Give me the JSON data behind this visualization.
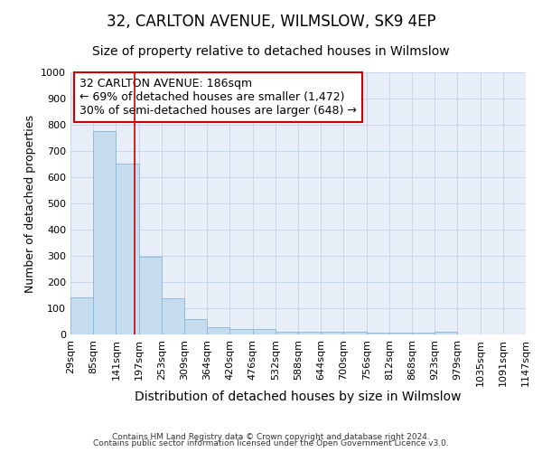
{
  "title": "32, CARLTON AVENUE, WILMSLOW, SK9 4EP",
  "subtitle": "Size of property relative to detached houses in Wilmslow",
  "xlabel": "Distribution of detached houses by size in Wilmslow",
  "ylabel": "Number of detached properties",
  "bin_labels": [
    "29sqm",
    "85sqm",
    "141sqm",
    "197sqm",
    "253sqm",
    "309sqm",
    "364sqm",
    "420sqm",
    "476sqm",
    "532sqm",
    "588sqm",
    "644sqm",
    "700sqm",
    "756sqm",
    "812sqm",
    "868sqm",
    "923sqm",
    "979sqm",
    "1035sqm",
    "1091sqm",
    "1147sqm"
  ],
  "bar_heights": [
    141,
    775,
    651,
    295,
    137,
    57,
    29,
    19,
    19,
    12,
    9,
    9,
    9,
    8,
    8,
    8,
    9,
    0,
    0,
    0
  ],
  "bar_color": "#c6ddef",
  "bar_edge_color": "#8ab4d4",
  "red_line_color": "#cc0000",
  "annotation_line1": "32 CARLTON AVENUE: 186sqm",
  "annotation_line2": "← 69% of detached houses are smaller (1,472)",
  "annotation_line3": "30% of semi-detached houses are larger (648) →",
  "annotation_box_color": "#ffffff",
  "annotation_box_edge_color": "#cc0000",
  "ylim": [
    0,
    1000
  ],
  "yticks": [
    0,
    100,
    200,
    300,
    400,
    500,
    600,
    700,
    800,
    900,
    1000
  ],
  "grid_color": "#c8d4e8",
  "background_color": "#e8eef8",
  "footer_line1": "Contains HM Land Registry data © Crown copyright and database right 2024.",
  "footer_line2": "Contains public sector information licensed under the Open Government Licence v3.0.",
  "title_fontsize": 12,
  "subtitle_fontsize": 10,
  "xlabel_fontsize": 10,
  "ylabel_fontsize": 9,
  "tick_fontsize": 8,
  "annotation_fontsize": 9,
  "footer_fontsize": 6.5
}
